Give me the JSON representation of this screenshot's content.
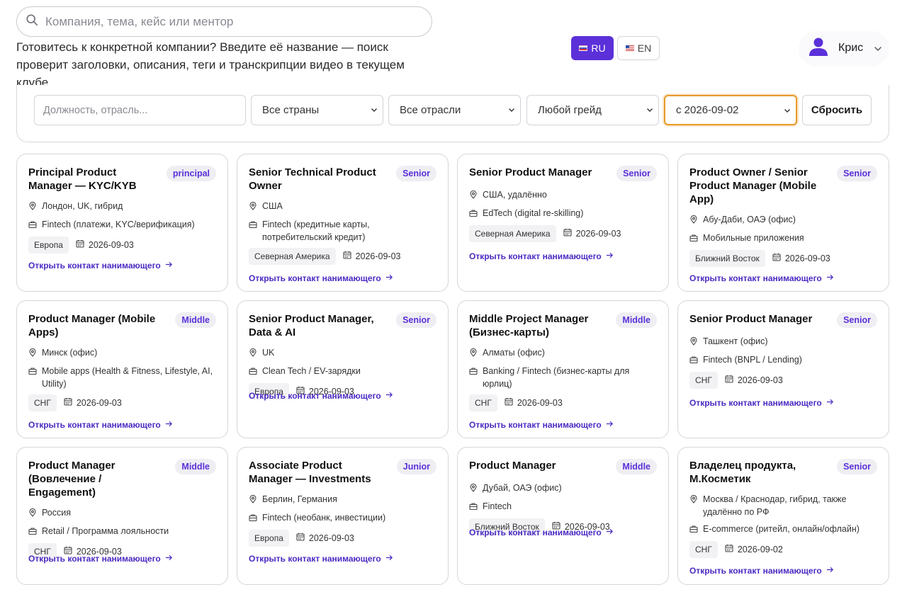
{
  "search": {
    "placeholder": "Компания, тема, кейс или ментор"
  },
  "hint": "Готовитесь к конкретной компании? Введите её название — поиск проверит заголовки, описания, теги и транскрипции видео в текущем клубе.",
  "lang": {
    "ru": "RU",
    "en": "EN",
    "active": "RU"
  },
  "user": {
    "name": "Крис"
  },
  "filters": {
    "position_placeholder": "Должность, отрасль...",
    "country": "Все страны",
    "industry": "Все отрасли",
    "grade": "Любой грейд",
    "date": "с 2026-09-02",
    "reset": "Сбросить"
  },
  "link_label": "Открыть контакт нанимающего",
  "accent": "#5b30d9",
  "cards": [
    {
      "title": "Principal Product Manager — KYC/KYB",
      "badge": "principal",
      "location": "Лондон, UK, гибрид",
      "industry": "Fintech (платежи, KYC/верификация)",
      "region": "Европа",
      "date": "2026-09-03"
    },
    {
      "title": "Senior Technical Product Owner",
      "badge": "Senior",
      "location": "США",
      "industry": "Fintech (кредитные карты, потребительский кредит)",
      "region": "Северная Америка",
      "date": "2026-09-03"
    },
    {
      "title": "Senior Product Manager",
      "badge": "Senior",
      "location": "США, удалённо",
      "industry": "EdTech (digital re-skilling)",
      "region": "Северная Америка",
      "date": "2026-09-03"
    },
    {
      "title": "Product Owner / Senior Product Manager (Mobile App)",
      "badge": "Senior",
      "location": "Абу-Даби, ОАЭ (офис)",
      "industry": "Мобильные приложения",
      "region": "Ближний Восток",
      "date": "2026-09-03"
    },
    {
      "title": "Product Manager (Mobile Apps)",
      "badge": "Middle",
      "location": "Минск (офис)",
      "industry": "Mobile apps (Health & Fitness, Lifestyle, AI, Utility)",
      "region": "СНГ",
      "date": "2026-09-03"
    },
    {
      "title": "Senior Product Manager, Data & AI",
      "badge": "Senior",
      "location": "UK",
      "industry": "Clean Tech / EV-зарядки",
      "region": "Европа",
      "date": "2026-09-03"
    },
    {
      "title": "Middle Project Manager (Бизнес-карты)",
      "badge": "Middle",
      "location": "Алматы (офис)",
      "industry": "Banking / Fintech (бизнес-карты для юрлиц)",
      "region": "СНГ",
      "date": "2026-09-03"
    },
    {
      "title": "Senior Product Manager",
      "badge": "Senior",
      "location": "Ташкент (офис)",
      "industry": "Fintech (BNPL / Lending)",
      "region": "СНГ",
      "date": "2026-09-03"
    },
    {
      "title": "Product Manager (Вовлечение / Engagement)",
      "badge": "Middle",
      "location": "Россия",
      "industry": "Retail / Программа лояльности",
      "region": "СНГ",
      "date": "2026-09-03"
    },
    {
      "title": "Associate Product Manager — Investments",
      "badge": "Junior",
      "location": "Берлин, Германия",
      "industry": "Fintech (необанк, инвестиции)",
      "region": "Европа",
      "date": "2026-09-03"
    },
    {
      "title": "Product Manager",
      "badge": "Middle",
      "location": "Дубай, ОАЭ (офис)",
      "industry": "Fintech",
      "region": "Ближний Восток",
      "date": "2026-09-03"
    },
    {
      "title": "Владелец продукта, М.Косметик",
      "badge": "Senior",
      "location": "Москва / Краснодар, гибрид, также удалённо по РФ",
      "industry": "E-commerce (ритейл, онлайн/офлайн)",
      "region": "СНГ",
      "date": "2026-09-02"
    }
  ]
}
